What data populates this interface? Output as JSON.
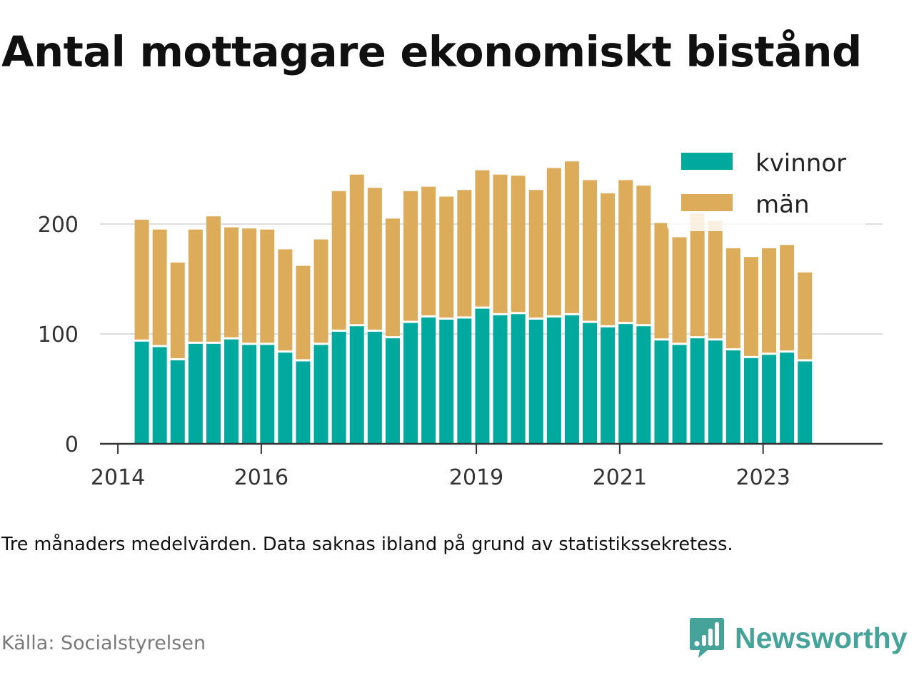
{
  "title": "Antal mottagare ekonomiskt bistånd",
  "note": "Tre månaders medelvärden. Data saknas ibland på grund av statistikssekretess.",
  "source": "Källa: Socialstyrelsen",
  "brand": {
    "name": "Newsworthy",
    "icon": "newsworthy-logo-icon",
    "color": "#45a39a"
  },
  "colors": {
    "kvinnor": "#00a99d",
    "man": "#dcac5b",
    "grid": "#dddddd",
    "axis": "#333333"
  },
  "chart_data": {
    "type": "bar",
    "stacked": true,
    "title": "",
    "xlabel": "",
    "ylabel": "",
    "ylim": [
      0,
      260
    ],
    "xlim": [
      "2013-10",
      "2024-09"
    ],
    "yticks": [
      "0",
      "100",
      "200"
    ],
    "xticks": [
      "2014",
      "2016",
      "2019",
      "2021",
      "2023"
    ],
    "grid": true,
    "legend_position": "top-right",
    "x": [
      "2014-05",
      "2014-08",
      "2014-11",
      "2015-02",
      "2015-05",
      "2015-08",
      "2015-11",
      "2016-02",
      "2016-05",
      "2016-08",
      "2016-11",
      "2017-02",
      "2017-05",
      "2017-08",
      "2017-11",
      "2018-02",
      "2018-05",
      "2018-08",
      "2018-11",
      "2019-02",
      "2019-05",
      "2019-08",
      "2019-11",
      "2020-02",
      "2020-05",
      "2020-08",
      "2020-11",
      "2021-02",
      "2021-05",
      "2021-08",
      "2021-11",
      "2022-02",
      "2022-05",
      "2022-08",
      "2022-11",
      "2023-02",
      "2023-05",
      "2023-08"
    ],
    "series": [
      {
        "name": "kvinnor",
        "values": [
          93,
          88,
          76,
          91,
          91,
          95,
          90,
          90,
          83,
          75,
          90,
          102,
          107,
          102,
          96,
          110,
          115,
          113,
          114,
          123,
          117,
          118,
          113,
          115,
          117,
          110,
          106,
          109,
          107,
          94,
          90,
          96,
          94,
          85,
          78,
          81,
          83,
          75
        ]
      },
      {
        "name": "män",
        "values": [
          111,
          107,
          89,
          104,
          116,
          102,
          106,
          105,
          94,
          87,
          96,
          128,
          138,
          131,
          109,
          120,
          119,
          112,
          117,
          126,
          128,
          126,
          118,
          136,
          140,
          130,
          122,
          131,
          128,
          107,
          98,
          114,
          109,
          93,
          92,
          97,
          98,
          81
        ]
      }
    ]
  }
}
